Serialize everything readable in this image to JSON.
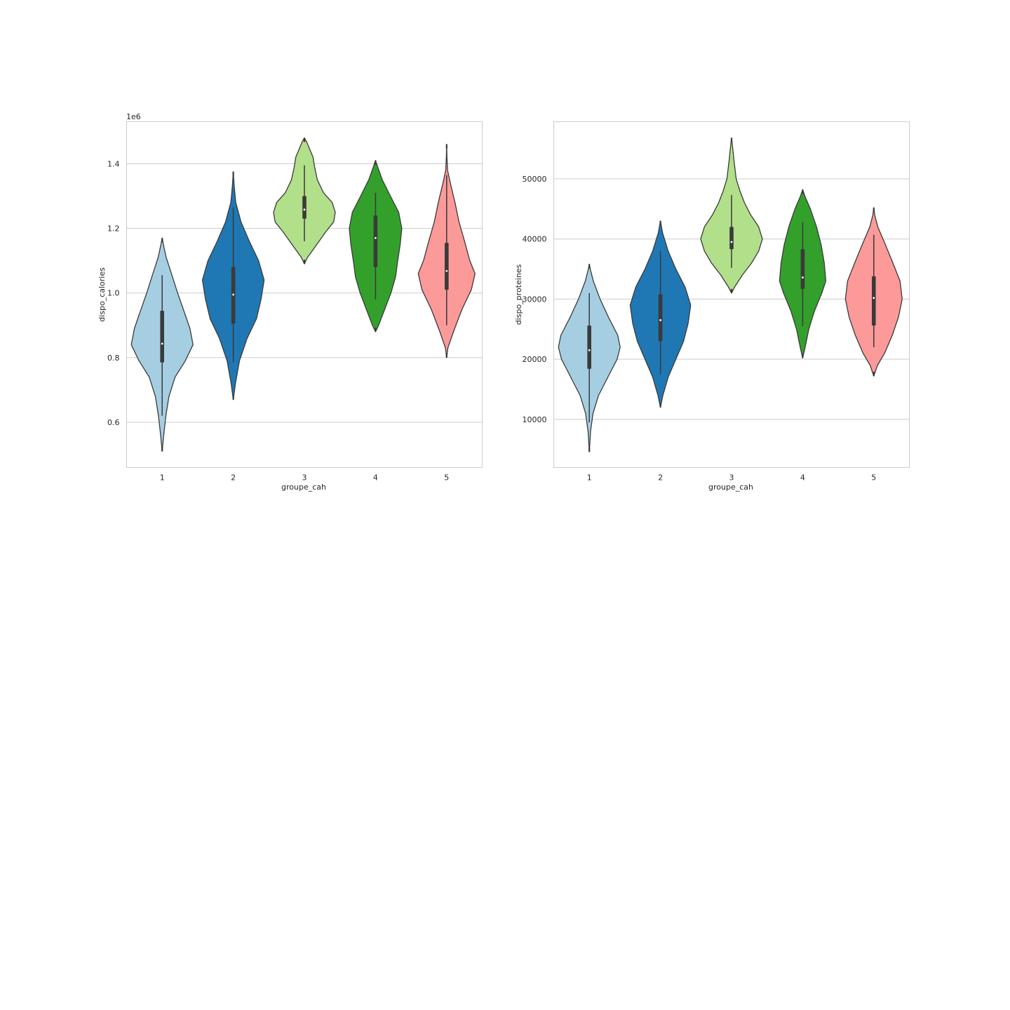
{
  "chart_data": [
    {
      "type": "violin",
      "xlabel": "groupe_cah",
      "ylabel": "dispo_calories",
      "offset_label": "1e6",
      "categories": [
        "1",
        "2",
        "3",
        "4",
        "5"
      ],
      "ylim": [
        0.46,
        1.53
      ],
      "yticks": [
        0.6,
        0.8,
        1.0,
        1.2,
        1.4
      ],
      "ytick_labels": [
        "0.6",
        "0.8",
        "1.0",
        "1.2",
        "1.4"
      ],
      "grid": true,
      "violins": [
        {
          "category": "1",
          "color": "#a6cee3",
          "min": 0.51,
          "max": 1.17,
          "q1": 0.785,
          "median": 0.843,
          "q3": 0.945,
          "whisker_low": 0.62,
          "whisker_high": 1.055,
          "profile": [
            [
              0.51,
              0.0
            ],
            [
              0.56,
              0.05
            ],
            [
              0.62,
              0.12
            ],
            [
              0.68,
              0.22
            ],
            [
              0.74,
              0.42
            ],
            [
              0.79,
              0.75
            ],
            [
              0.84,
              1.0
            ],
            [
              0.89,
              0.9
            ],
            [
              0.94,
              0.72
            ],
            [
              1.0,
              0.5
            ],
            [
              1.06,
              0.3
            ],
            [
              1.11,
              0.13
            ],
            [
              1.15,
              0.04
            ],
            [
              1.17,
              0.0
            ]
          ]
        },
        {
          "category": "2",
          "color": "#1f78b4",
          "min": 0.67,
          "max": 1.375,
          "q1": 0.905,
          "median": 0.995,
          "q3": 1.08,
          "whisker_low": 0.785,
          "whisker_high": 1.265,
          "profile": [
            [
              0.67,
              0.0
            ],
            [
              0.72,
              0.07
            ],
            [
              0.79,
              0.2
            ],
            [
              0.86,
              0.45
            ],
            [
              0.92,
              0.75
            ],
            [
              0.98,
              0.9
            ],
            [
              1.04,
              1.0
            ],
            [
              1.1,
              0.82
            ],
            [
              1.16,
              0.52
            ],
            [
              1.22,
              0.25
            ],
            [
              1.28,
              0.08
            ],
            [
              1.33,
              0.03
            ],
            [
              1.375,
              0.0
            ]
          ]
        },
        {
          "category": "3",
          "color": "#b2df8a",
          "min": 1.09,
          "max": 1.48,
          "q1": 1.23,
          "median": 1.258,
          "q3": 1.3,
          "whisker_low": 1.16,
          "whisker_high": 1.395,
          "profile": [
            [
              1.09,
              0.0
            ],
            [
              1.11,
              0.1
            ],
            [
              1.15,
              0.4
            ],
            [
              1.19,
              0.7
            ],
            [
              1.22,
              0.95
            ],
            [
              1.25,
              1.0
            ],
            [
              1.28,
              0.9
            ],
            [
              1.31,
              0.62
            ],
            [
              1.35,
              0.42
            ],
            [
              1.39,
              0.33
            ],
            [
              1.42,
              0.28
            ],
            [
              1.45,
              0.15
            ],
            [
              1.47,
              0.06
            ],
            [
              1.48,
              0.0
            ]
          ]
        },
        {
          "category": "4",
          "color": "#33a02c",
          "min": 0.88,
          "max": 1.41,
          "q1": 1.08,
          "median": 1.17,
          "q3": 1.24,
          "whisker_low": 0.98,
          "whisker_high": 1.31,
          "profile": [
            [
              0.88,
              0.0
            ],
            [
              0.9,
              0.1
            ],
            [
              0.95,
              0.3
            ],
            [
              1.0,
              0.5
            ],
            [
              1.05,
              0.65
            ],
            [
              1.1,
              0.72
            ],
            [
              1.15,
              0.8
            ],
            [
              1.2,
              0.85
            ],
            [
              1.25,
              0.75
            ],
            [
              1.3,
              0.48
            ],
            [
              1.35,
              0.22
            ],
            [
              1.39,
              0.07
            ],
            [
              1.41,
              0.0
            ]
          ]
        },
        {
          "category": "5",
          "color": "#fb9a99",
          "min": 0.8,
          "max": 1.46,
          "q1": 1.01,
          "median": 1.068,
          "q3": 1.155,
          "whisker_low": 0.9,
          "whisker_high": 1.365,
          "profile": [
            [
              0.8,
              0.0
            ],
            [
              0.83,
              0.04
            ],
            [
              0.88,
              0.22
            ],
            [
              0.95,
              0.5
            ],
            [
              1.01,
              0.8
            ],
            [
              1.06,
              0.92
            ],
            [
              1.1,
              0.75
            ],
            [
              1.16,
              0.58
            ],
            [
              1.22,
              0.4
            ],
            [
              1.28,
              0.27
            ],
            [
              1.34,
              0.12
            ],
            [
              1.38,
              0.03
            ],
            [
              1.42,
              0.01
            ],
            [
              1.46,
              0.0
            ]
          ]
        }
      ]
    },
    {
      "type": "violin",
      "xlabel": "groupe_cah",
      "ylabel": "dispo_proteines",
      "offset_label": "",
      "categories": [
        "1",
        "2",
        "3",
        "4",
        "5"
      ],
      "ylim": [
        2000,
        59500
      ],
      "yticks": [
        10000,
        20000,
        30000,
        40000,
        50000
      ],
      "ytick_labels": [
        "10000",
        "20000",
        "30000",
        "40000",
        "50000"
      ],
      "grid": true,
      "violins": [
        {
          "category": "1",
          "color": "#a6cee3",
          "min": 4600,
          "max": 35800,
          "q1": 18400,
          "median": 21500,
          "q3": 25600,
          "whisker_low": 9500,
          "whisker_high": 31000,
          "profile": [
            [
              4600,
              0.0
            ],
            [
              8000,
              0.04
            ],
            [
              11000,
              0.12
            ],
            [
              14000,
              0.3
            ],
            [
              17000,
              0.6
            ],
            [
              20000,
              0.9
            ],
            [
              22000,
              1.0
            ],
            [
              24000,
              0.92
            ],
            [
              27000,
              0.62
            ],
            [
              30000,
              0.35
            ],
            [
              33000,
              0.13
            ],
            [
              35000,
              0.03
            ],
            [
              35800,
              0.0
            ]
          ]
        },
        {
          "category": "2",
          "color": "#1f78b4",
          "min": 12000,
          "max": 43000,
          "q1": 23000,
          "median": 26500,
          "q3": 30800,
          "whisker_low": 17500,
          "whisker_high": 38000,
          "profile": [
            [
              12000,
              0.0
            ],
            [
              14000,
              0.08
            ],
            [
              17000,
              0.25
            ],
            [
              20000,
              0.5
            ],
            [
              23000,
              0.75
            ],
            [
              26000,
              0.9
            ],
            [
              29000,
              0.98
            ],
            [
              32000,
              0.8
            ],
            [
              35000,
              0.5
            ],
            [
              38000,
              0.25
            ],
            [
              41000,
              0.07
            ],
            [
              43000,
              0.0
            ]
          ]
        },
        {
          "category": "3",
          "color": "#b2df8a",
          "min": 31000,
          "max": 56800,
          "q1": 38300,
          "median": 39500,
          "q3": 42000,
          "whisker_low": 35200,
          "whisker_high": 47300,
          "profile": [
            [
              31000,
              0.0
            ],
            [
              32000,
              0.1
            ],
            [
              34000,
              0.35
            ],
            [
              36000,
              0.65
            ],
            [
              38000,
              0.88
            ],
            [
              40000,
              1.0
            ],
            [
              42000,
              0.88
            ],
            [
              44000,
              0.62
            ],
            [
              46000,
              0.42
            ],
            [
              48000,
              0.27
            ],
            [
              50000,
              0.15
            ],
            [
              53000,
              0.08
            ],
            [
              55000,
              0.04
            ],
            [
              56800,
              0.0
            ]
          ]
        },
        {
          "category": "4",
          "color": "#33a02c",
          "min": 20200,
          "max": 48200,
          "q1": 31700,
          "median": 33600,
          "q3": 38300,
          "whisker_low": 25500,
          "whisker_high": 42800,
          "profile": [
            [
              20200,
              0.0
            ],
            [
              22000,
              0.08
            ],
            [
              25000,
              0.2
            ],
            [
              28000,
              0.38
            ],
            [
              31000,
              0.62
            ],
            [
              33000,
              0.75
            ],
            [
              36000,
              0.7
            ],
            [
              39000,
              0.6
            ],
            [
              42000,
              0.45
            ],
            [
              45000,
              0.25
            ],
            [
              47000,
              0.08
            ],
            [
              48200,
              0.0
            ]
          ]
        },
        {
          "category": "5",
          "color": "#fb9a99",
          "min": 17200,
          "max": 45200,
          "q1": 25600,
          "median": 30200,
          "q3": 33800,
          "whisker_low": 22000,
          "whisker_high": 40700,
          "profile": [
            [
              17200,
              0.0
            ],
            [
              19000,
              0.12
            ],
            [
              21000,
              0.35
            ],
            [
              24000,
              0.6
            ],
            [
              27000,
              0.8
            ],
            [
              30000,
              0.92
            ],
            [
              33000,
              0.85
            ],
            [
              36000,
              0.62
            ],
            [
              39000,
              0.38
            ],
            [
              42000,
              0.13
            ],
            [
              44000,
              0.03
            ],
            [
              45200,
              0.0
            ]
          ]
        }
      ]
    }
  ]
}
